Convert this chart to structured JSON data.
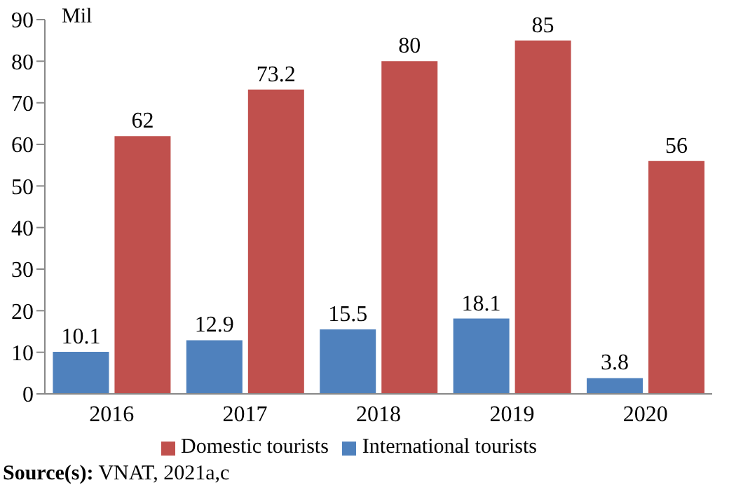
{
  "chart_data": {
    "type": "bar",
    "ylabel": "Mil",
    "categories": [
      "2016",
      "2017",
      "2018",
      "2019",
      "2020"
    ],
    "series": [
      {
        "name": "International tourists",
        "color": "#4f81bd",
        "values": [
          10.1,
          12.9,
          15.5,
          18.1,
          3.8
        ]
      },
      {
        "name": "Domestic tourists",
        "color": "#c0504d",
        "values": [
          62,
          73.2,
          80,
          85,
          56
        ]
      }
    ],
    "ylim": [
      0,
      90
    ],
    "yticks": [
      0,
      10,
      20,
      30,
      40,
      50,
      60,
      70,
      80,
      90
    ],
    "grid": false,
    "legend": "bottom",
    "data_labels": true,
    "annotations": [
      "Source(s): VNAT, 2021a,c"
    ]
  }
}
